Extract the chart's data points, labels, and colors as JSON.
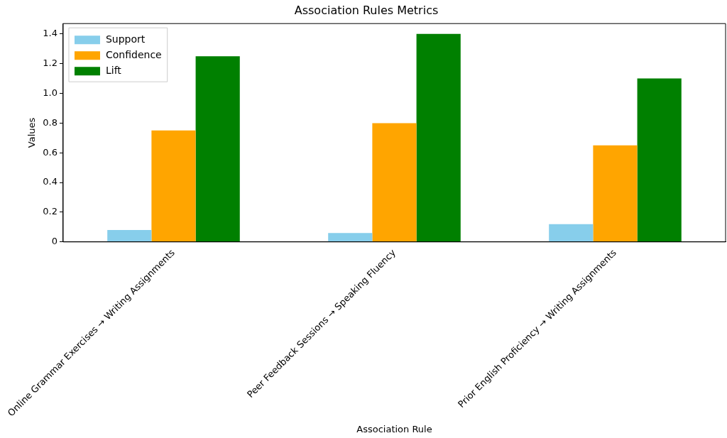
{
  "chart_data": {
    "type": "bar",
    "title": "Association Rules Metrics",
    "xlabel": "Association Rule",
    "ylabel": "Values",
    "categories": [
      "Online Grammar Exercises → Writing Assignments",
      "Peer Feedback Sessions → Speaking Fluency",
      "Prior English Proficiency → Writing Assignments"
    ],
    "series": [
      {
        "name": "Support",
        "color": "#87ceeb",
        "values": [
          0.08,
          0.06,
          0.12
        ]
      },
      {
        "name": "Confidence",
        "color": "#ffa500",
        "values": [
          0.75,
          0.8,
          0.65
        ]
      },
      {
        "name": "Lift",
        "color": "#008000",
        "values": [
          1.25,
          1.4,
          1.1
        ]
      }
    ],
    "ylim": [
      0,
      1.47
    ],
    "yticks": [
      0,
      {
        "value": 0.2,
        "label": "0.2"
      },
      {
        "value": 0.4,
        "label": "0.4"
      },
      {
        "value": 0.6,
        "label": "0.6"
      },
      {
        "value": 0.8,
        "label": "0.8"
      },
      {
        "value": 1,
        "label": "1.0"
      },
      {
        "value": 1.2,
        "label": "1.2"
      },
      {
        "value": 1.4,
        "label": "1.4"
      }
    ],
    "grid": false,
    "legend": "top left"
  }
}
